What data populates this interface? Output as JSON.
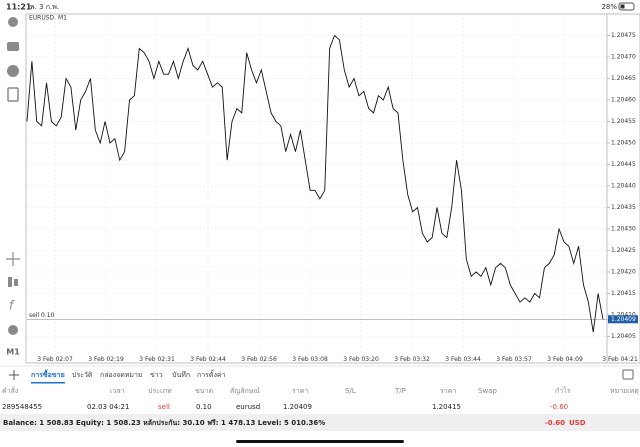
{
  "status_bar": {
    "time": "11:21",
    "date": "พ. 3 ก.พ.",
    "battery": "28%"
  },
  "sidebar": {
    "timeframe": "M1"
  },
  "chart_data": {
    "type": "line",
    "title": "EURUSD, M1",
    "color": "#111111",
    "values": [
      1.20455,
      1.20469,
      1.20455,
      1.20454,
      1.20464,
      1.20455,
      1.20454,
      1.20456,
      1.20465,
      1.20463,
      1.20453,
      1.2046,
      1.20462,
      1.20465,
      1.20453,
      1.2045,
      1.20455,
      1.2045,
      1.20451,
      1.20446,
      1.20448,
      1.2046,
      1.20461,
      1.20472,
      1.20471,
      1.20469,
      1.20465,
      1.20469,
      1.20466,
      1.20466,
      1.20469,
      1.20465,
      1.20469,
      1.20472,
      1.20468,
      1.20467,
      1.20469,
      1.20466,
      1.20463,
      1.20464,
      1.20463,
      1.20446,
      1.20455,
      1.20458,
      1.20457,
      1.20471,
      1.20467,
      1.20464,
      1.20467,
      1.20462,
      1.20457,
      1.20455,
      1.20454,
      1.20448,
      1.20452,
      1.20448,
      1.20453,
      1.20446,
      1.20439,
      1.20439,
      1.20437,
      1.20439,
      1.20472,
      1.20475,
      1.20474,
      1.20467,
      1.20463,
      1.20465,
      1.20461,
      1.20462,
      1.20458,
      1.20457,
      1.20461,
      1.2046,
      1.20463,
      1.20458,
      1.20457,
      1.20446,
      1.20438,
      1.20434,
      1.20435,
      1.20429,
      1.20427,
      1.20428,
      1.20435,
      1.20429,
      1.20428,
      1.20435,
      1.20446,
      1.20439,
      1.20423,
      1.20419,
      1.2042,
      1.20419,
      1.20421,
      1.20417,
      1.20421,
      1.20422,
      1.20421,
      1.20417,
      1.20415,
      1.20413,
      1.20414,
      1.20413,
      1.20415,
      1.20414,
      1.20421,
      1.20422,
      1.20424,
      1.2043,
      1.20427,
      1.20426,
      1.20422,
      1.20426,
      1.20417,
      1.20413,
      1.20406,
      1.20415,
      1.20409
    ],
    "xtick_labels": [
      "3 Feb 02:07",
      "3 Feb 02:19",
      "3 Feb 02:31",
      "3 Feb 02:44",
      "3 Feb 02:56",
      "3 Feb 03:08",
      "3 Feb 03:20",
      "3 Feb 03:32",
      "3 Feb 03:44",
      "3 Feb 03:57",
      "3 Feb 04:09",
      "3 Feb 04:21"
    ],
    "ylim": [
      1.204,
      1.2048
    ],
    "yticks": [
      1.20475,
      {
        "value": 1.2047,
        "label": "1.20470"
      },
      1.20465,
      {
        "value": 1.2046,
        "label": "1.20460"
      },
      1.20455,
      {
        "value": 1.2045,
        "label": "1.20450"
      },
      1.20445,
      {
        "value": 1.2044,
        "label": "1.20440"
      },
      1.20435,
      {
        "value": 1.2043,
        "label": "1.20430"
      },
      1.20425,
      {
        "value": 1.2042,
        "label": "1.20420"
      },
      1.20415,
      {
        "value": 1.2041,
        "label": "1.20410"
      },
      1.20405
    ],
    "grid": true,
    "order_line": {
      "label": "sell 0.10",
      "value": 1.20409
    },
    "last_price": 1.20409
  },
  "tabs": [
    "การซื้อขาย",
    "ประวัติ",
    "กล่องจดหมาย",
    "ข่าว",
    "บันทึก",
    "การตั้งค่า"
  ],
  "table": {
    "columns": [
      "คำสั่ง",
      "เวลา",
      "ประเภท",
      "ขนาด",
      "สัญลักษณ์",
      "ราคา",
      "S/L",
      "T/P",
      "ราคา",
      "Swap",
      "กำไร",
      "หมายเหตุ"
    ],
    "rows": [
      {
        "order": "289548455",
        "time": "02.03 04:21",
        "type": "sell",
        "volume": "0.10",
        "symbol": "eurusd",
        "price": "1.20409",
        "current_price": "1.20415",
        "profit": "-0.60"
      }
    ]
  },
  "footer": {
    "summary": "Balance: 1 508.83 Equity: 1 508.23 หลักประกัน: 30.10 ฟรี: 1 478.13 Level: 5 010.36%",
    "profit": "-0.60",
    "currency": "USD"
  }
}
